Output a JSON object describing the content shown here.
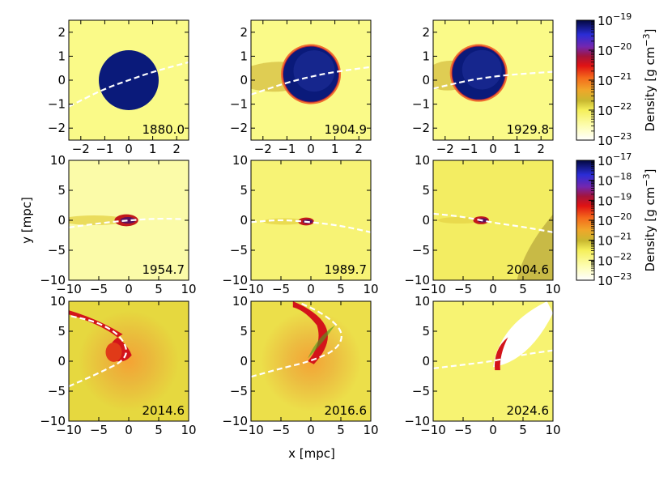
{
  "chart_data": {
    "type": "heatmap",
    "figure": {
      "xlabel": "x [mpc]",
      "ylabel": "y [mpc]"
    },
    "colorbars": [
      {
        "label": "Density [g cm",
        "label_sup": "−3",
        "label_close": "]",
        "ticks": [
          {
            "base": "10",
            "exp": "−19",
            "log": -19
          },
          {
            "base": "10",
            "exp": "−20",
            "log": -20
          },
          {
            "base": "10",
            "exp": "−21",
            "log": -21
          },
          {
            "base": "10",
            "exp": "−22",
            "log": -22
          },
          {
            "base": "10",
            "exp": "−23",
            "log": -23
          }
        ],
        "range_log": [
          -23,
          -19
        ]
      },
      {
        "label": "Density [g cm",
        "label_sup": "−3",
        "label_close": "]",
        "ticks": [
          {
            "base": "10",
            "exp": "−17",
            "log": -17
          },
          {
            "base": "10",
            "exp": "−18",
            "log": -18
          },
          {
            "base": "10",
            "exp": "−19",
            "log": -19
          },
          {
            "base": "10",
            "exp": "−20",
            "log": -20
          },
          {
            "base": "10",
            "exp": "−21",
            "log": -21
          },
          {
            "base": "10",
            "exp": "−22",
            "log": -22
          },
          {
            "base": "10",
            "exp": "−23",
            "log": -23
          }
        ],
        "range_log": [
          -23,
          -17
        ]
      }
    ],
    "rows": [
      {
        "xlim": [
          -2.5,
          2.5
        ],
        "ylim": [
          -2.5,
          2.5
        ],
        "xticks": [
          -2,
          -1,
          0,
          1,
          2
        ],
        "yticks": [
          -2,
          -1,
          0,
          1,
          2
        ],
        "xtick_labels": [
          "−2",
          "−1",
          "0",
          "1",
          "2"
        ],
        "ytick_labels": [
          "−2",
          "−1",
          "0",
          "1",
          "2"
        ]
      },
      {
        "xlim": [
          -10,
          10
        ],
        "ylim": [
          -10,
          10
        ],
        "xticks": [
          -10,
          -5,
          0,
          5,
          10
        ],
        "yticks": [
          -10,
          -5,
          0,
          5,
          10
        ],
        "xtick_labels": [
          "−10",
          "−5",
          "0",
          "5",
          "10"
        ],
        "ytick_labels": [
          "−10",
          "−5",
          "0",
          "5",
          "10"
        ]
      },
      {
        "xlim": [
          -10,
          10
        ],
        "ylim": [
          -10,
          10
        ],
        "xticks": [
          -10,
          -5,
          0,
          5,
          10
        ],
        "yticks": [
          -10,
          -5,
          0,
          5,
          10
        ],
        "xtick_labels": [
          "−10",
          "−5",
          "0",
          "5",
          "10"
        ],
        "ytick_labels": [
          "−10",
          "−5",
          "0",
          "5",
          "10"
        ]
      }
    ],
    "panels": [
      {
        "year": "1880.0",
        "row": 0,
        "col": 0,
        "bg": "#fafa88",
        "orbit": [
          [
            -2.5,
            -1.1
          ],
          [
            -1,
            -0.35
          ],
          [
            0,
            0
          ],
          [
            1,
            0.35
          ],
          [
            2.5,
            0.75
          ]
        ],
        "cloud_center": [
          0,
          0
        ],
        "cloud_radius": 1.25
      },
      {
        "year": "1904.9",
        "row": 0,
        "col": 1,
        "bg": "#fafa88",
        "orbit": [
          [
            -2.5,
            -0.6
          ],
          [
            -1,
            -0.1
          ],
          [
            0,
            0.15
          ],
          [
            1,
            0.35
          ],
          [
            2.5,
            0.55
          ]
        ],
        "cloud_center": [
          0,
          0.25
        ],
        "cloud_radius": 1.15
      },
      {
        "year": "1929.8",
        "row": 0,
        "col": 2,
        "bg": "#fafa88",
        "orbit": [
          [
            -2.5,
            -0.35
          ],
          [
            -1,
            0
          ],
          [
            0,
            0.15
          ],
          [
            1,
            0.25
          ],
          [
            2.5,
            0.35
          ]
        ],
        "cloud_center": [
          -0.6,
          0.3
        ],
        "cloud_radius": 1.1
      },
      {
        "year": "1954.7",
        "row": 1,
        "col": 0,
        "bg": "#fbfba8",
        "orbit": [
          [
            -10,
            -1.2
          ],
          [
            -5,
            -0.5
          ],
          [
            0,
            0
          ],
          [
            5,
            0.3
          ],
          [
            9,
            0.2
          ]
        ],
        "cloud_center": [
          -0.4,
          0
        ],
        "cloud_radius": 0.9
      },
      {
        "year": "1989.7",
        "row": 1,
        "col": 1,
        "bg": "#f7f375",
        "orbit": [
          [
            -10,
            -0.3
          ],
          [
            -5,
            0.1
          ],
          [
            0,
            -0.3
          ],
          [
            5,
            -0.9
          ],
          [
            10,
            -2
          ]
        ],
        "cloud_center": [
          -0.8,
          -0.2
        ],
        "cloud_radius": 0.6
      },
      {
        "year": "2004.6",
        "row": 1,
        "col": 2,
        "bg": "#f3ed62",
        "orbit": [
          [
            -10,
            1.1
          ],
          [
            -5,
            0.6
          ],
          [
            0,
            -0.4
          ],
          [
            5,
            -1.1
          ],
          [
            10,
            -2
          ]
        ],
        "cloud_center": [
          -2,
          0
        ],
        "cloud_radius": 0.6
      },
      {
        "year": "2014.6",
        "row": 2,
        "col": 0,
        "bg": "#e6d83f",
        "orbit": [
          [
            -10,
            -4.2
          ],
          [
            -5,
            -2
          ],
          [
            0,
            0.5
          ],
          [
            -1,
            4
          ],
          [
            -5,
            6.5
          ],
          [
            -10,
            7.6
          ]
        ],
        "cloud_center": [
          -2,
          1.2
        ],
        "cloud_radius": 2.2
      },
      {
        "year": "2016.6",
        "row": 2,
        "col": 1,
        "bg": "#ecdf4a",
        "orbit": [
          [
            -10,
            -2.6
          ],
          [
            -5,
            -1.2
          ],
          [
            0,
            0
          ],
          [
            4.5,
            2
          ],
          [
            5.5,
            5
          ],
          [
            2,
            8
          ],
          [
            -2,
            9.8
          ]
        ],
        "cloud_center": [
          2.5,
          3
        ],
        "cloud_radius": 2.8
      },
      {
        "year": "2024.6",
        "row": 2,
        "col": 2,
        "bg": "#f7f372",
        "orbit": [
          [
            -10,
            -1.2
          ],
          [
            -5,
            -0.6
          ],
          [
            0,
            0
          ],
          [
            5,
            1.1
          ],
          [
            10,
            1.8
          ]
        ],
        "cloud_center": [
          3.5,
          2.5
        ],
        "cloud_radius": 4
      }
    ]
  }
}
